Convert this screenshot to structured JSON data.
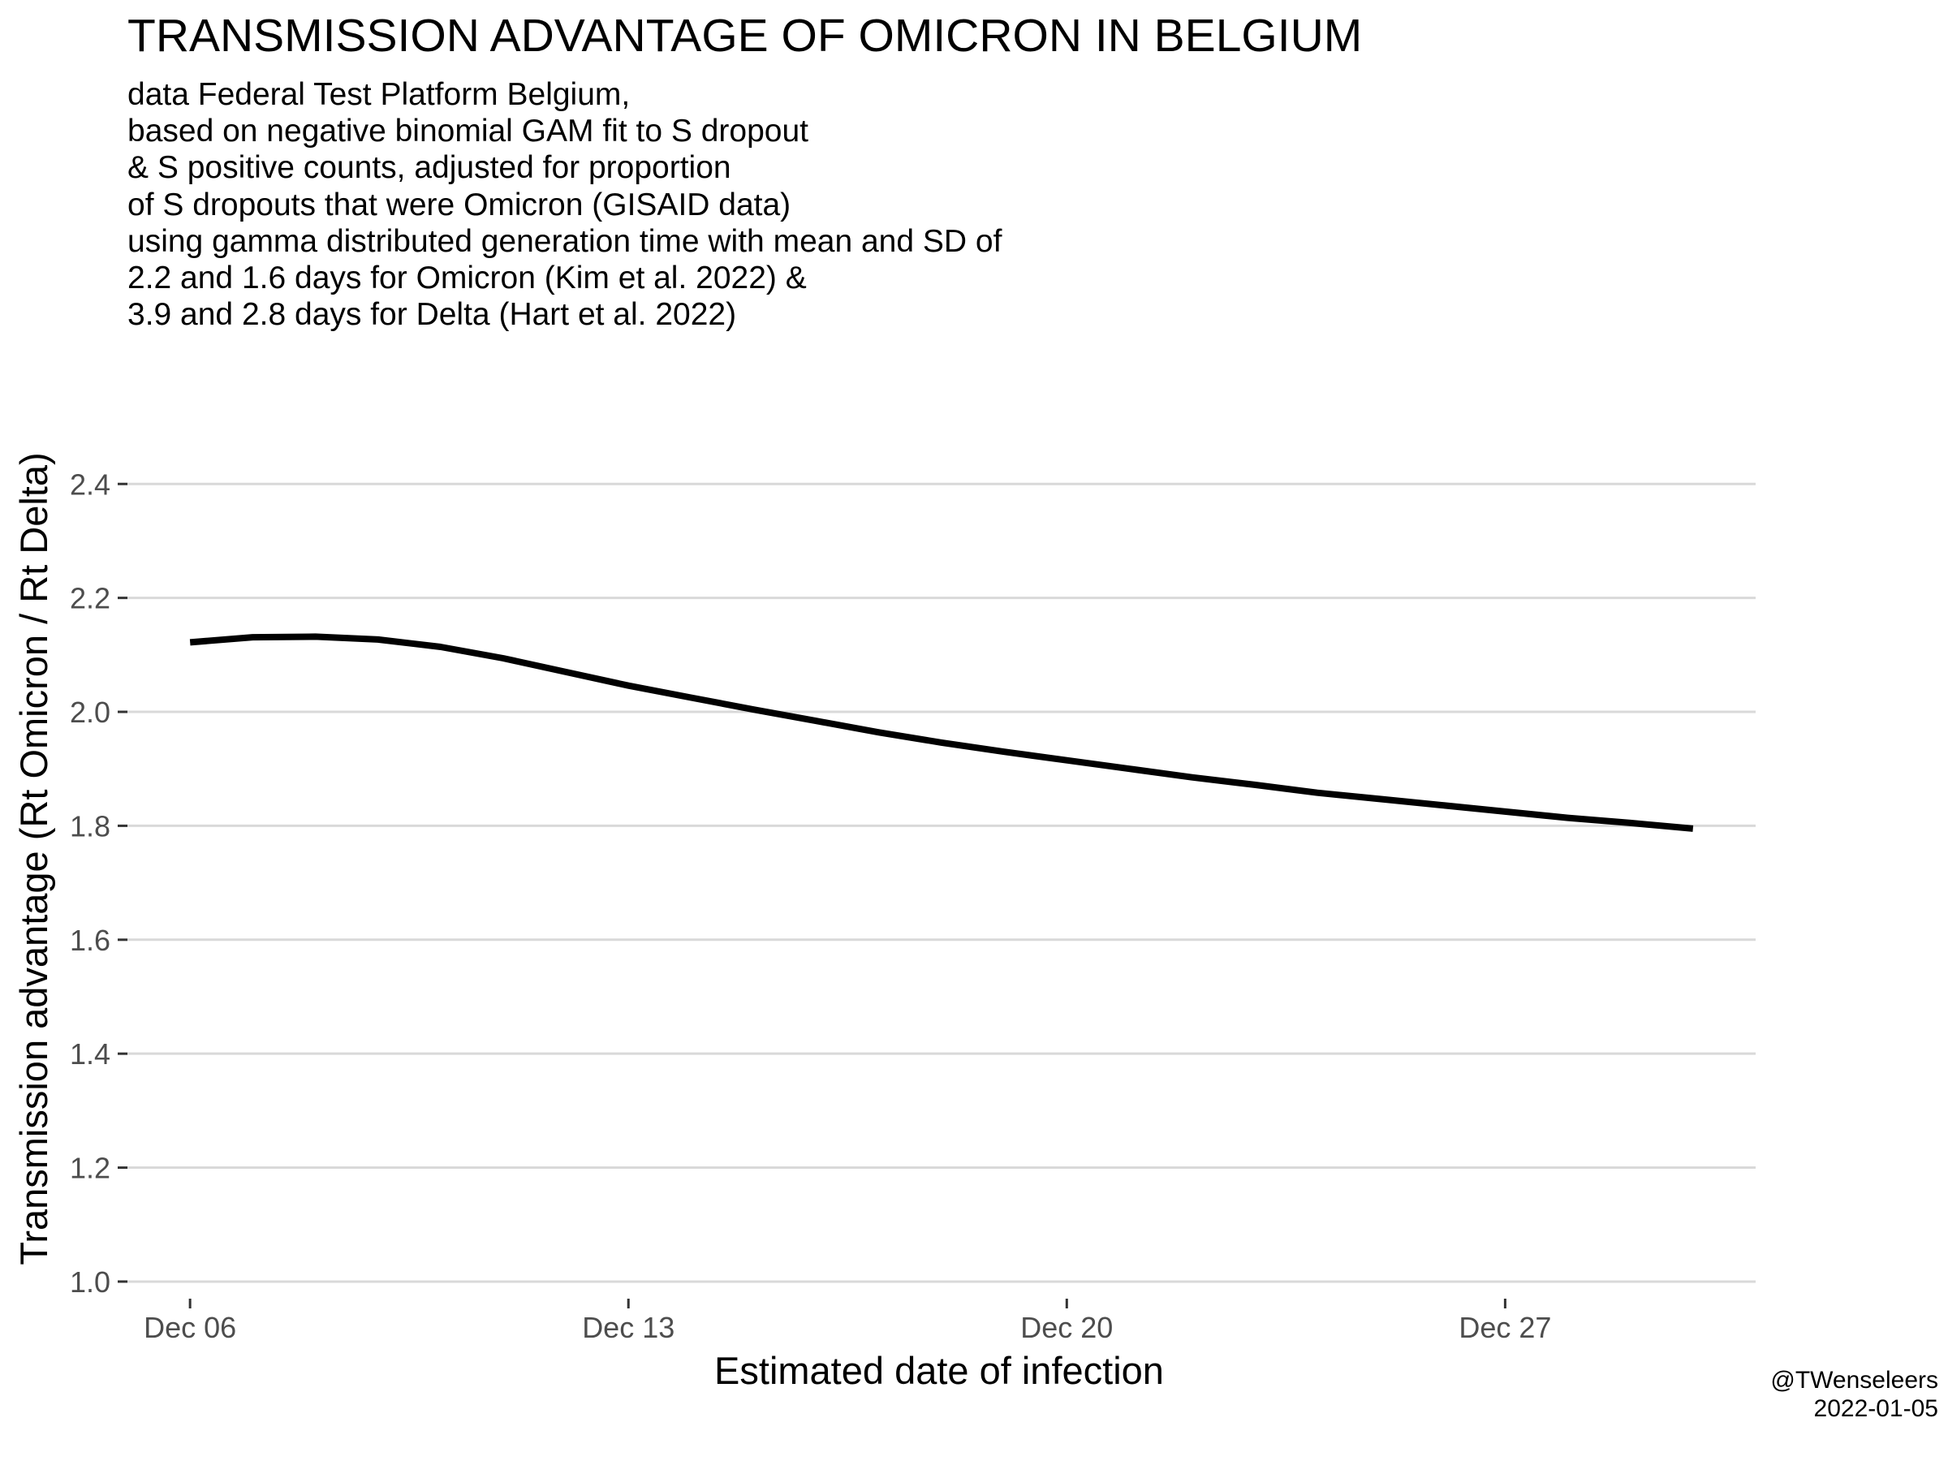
{
  "title": "TRANSMISSION ADVANTAGE OF OMICRON IN BELGIUM",
  "subtitle_lines": [
    "data Federal Test Platform Belgium,",
    "based on negative binomial GAM fit to S dropout",
    "& S positive counts, adjusted for proportion",
    "of S dropouts that were Omicron (GISAID data)",
    "using gamma distributed generation time with mean and SD of",
    "2.2 and 1.6 days for Omicron (Kim et al. 2022) &",
    "3.9 and 2.8 days for Delta (Hart et al. 2022)"
  ],
  "caption_lines": [
    "@TWenseleers",
    "2022-01-05"
  ],
  "chart_data": {
    "type": "line",
    "title": "TRANSMISSION ADVANTAGE OF OMICRON IN BELGIUM",
    "xlabel": "Estimated date of infection",
    "ylabel": "Transmission advantage (Rt Omicron / Rt Delta)",
    "x_ticks": [
      "2021-12-06",
      "2021-12-13",
      "2021-12-20",
      "2021-12-27"
    ],
    "x_tick_labels": [
      "Dec 06",
      "Dec 13",
      "Dec 20",
      "Dec 27"
    ],
    "xlim": [
      "2021-12-05",
      "2021-12-31"
    ],
    "y_ticks": [
      1.0,
      1.2,
      1.4,
      1.6,
      1.8,
      2.0,
      2.2,
      2.4
    ],
    "y_tick_labels": [
      "1.0",
      "1.2",
      "1.4",
      "1.6",
      "1.8",
      "2.0",
      "2.2",
      "2.4"
    ],
    "ylim": [
      0.97,
      2.53
    ],
    "grid": "horizontal major",
    "line_color": "#000000",
    "grid_color": "#d9d9d9",
    "series": [
      {
        "x": [
          "2021-12-06",
          "2021-12-07",
          "2021-12-08",
          "2021-12-09",
          "2021-12-10",
          "2021-12-11",
          "2021-12-12",
          "2021-12-13",
          "2021-12-14",
          "2021-12-15",
          "2021-12-16",
          "2021-12-17",
          "2021-12-18",
          "2021-12-19",
          "2021-12-20",
          "2021-12-21",
          "2021-12-22",
          "2021-12-23",
          "2021-12-24",
          "2021-12-25",
          "2021-12-26",
          "2021-12-27",
          "2021-12-28",
          "2021-12-29",
          "2021-12-30"
        ],
        "y": [
          2.122,
          2.131,
          2.132,
          2.127,
          2.114,
          2.094,
          2.07,
          2.046,
          2.025,
          2.004,
          1.984,
          1.964,
          1.946,
          1.93,
          1.915,
          1.9,
          1.885,
          1.872,
          1.858,
          1.847,
          1.836,
          1.825,
          1.814,
          1.805,
          1.795
        ]
      }
    ]
  }
}
